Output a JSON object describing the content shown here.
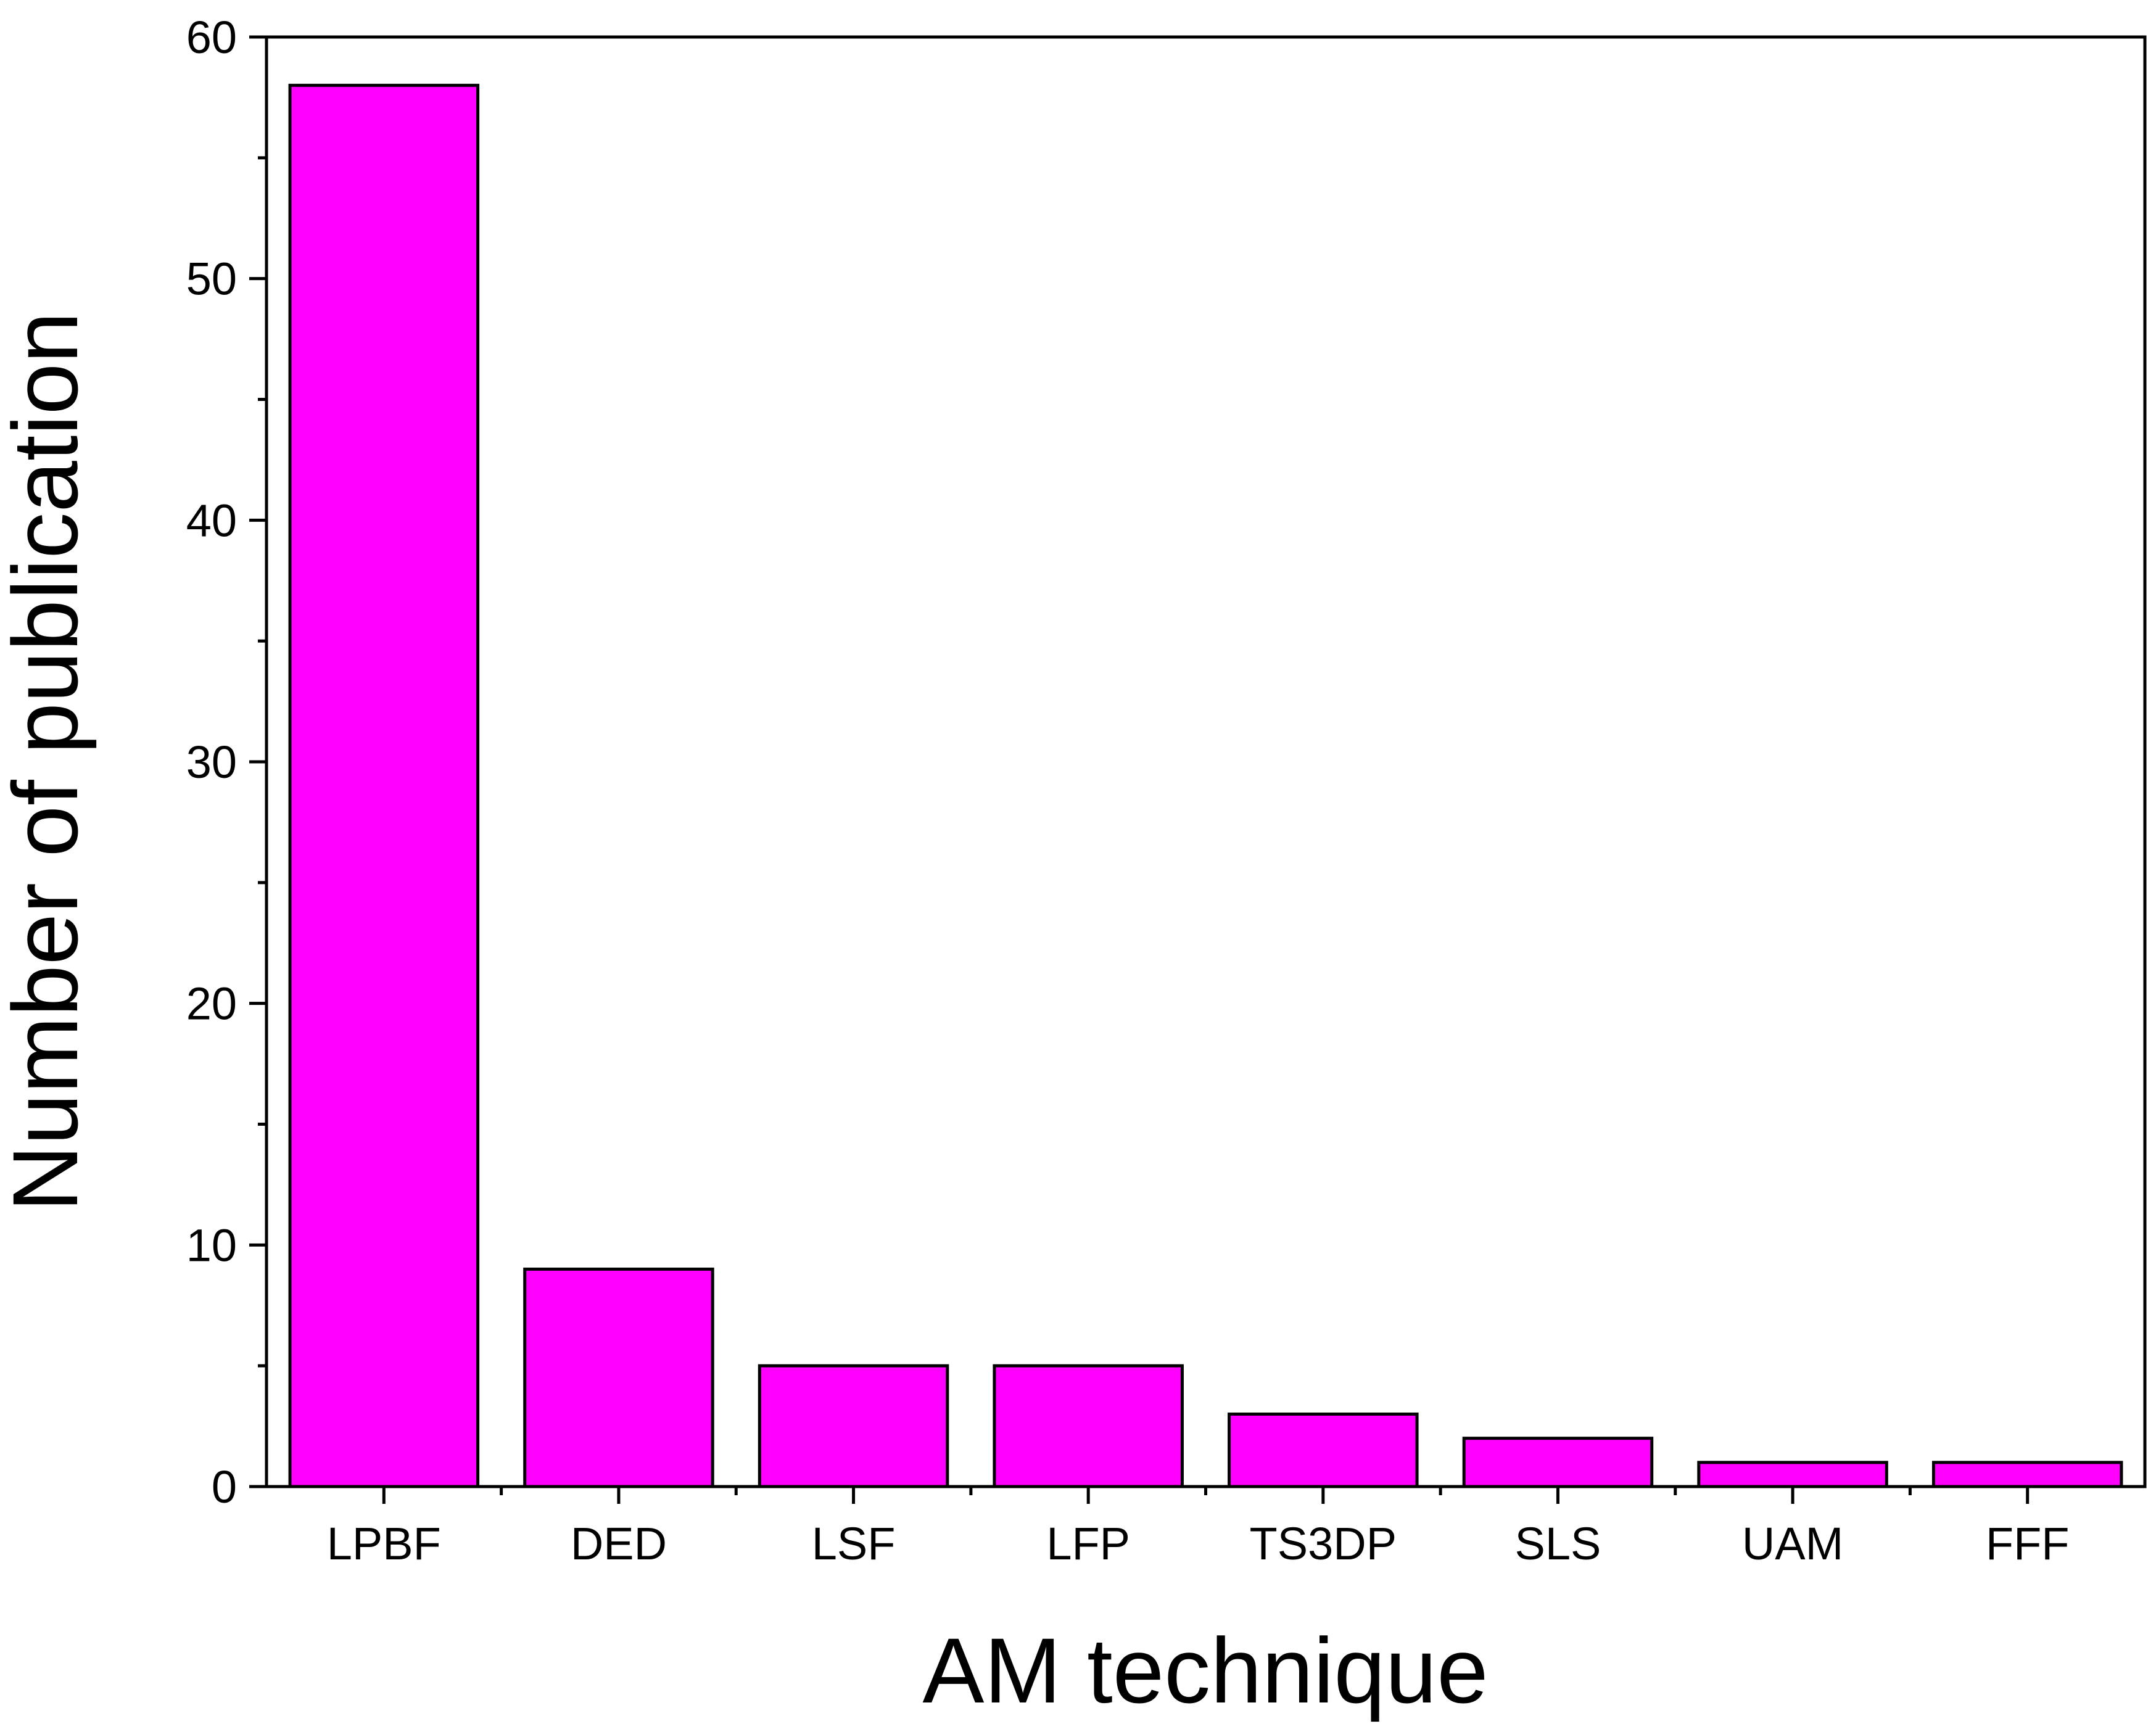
{
  "chart_data": {
    "type": "bar",
    "title": "",
    "xlabel": "AM technique",
    "ylabel": "Number of publication",
    "categories": [
      "LPBF",
      "DED",
      "LSF",
      "LFP",
      "TS3DP",
      "SLS",
      "UAM",
      "FFF"
    ],
    "values": [
      58,
      9,
      5,
      5,
      3,
      2,
      1,
      1
    ],
    "ylim": [
      0,
      60
    ],
    "yticks": [
      0,
      10,
      20,
      30,
      40,
      50,
      60
    ],
    "y_minor_step": 5,
    "grid": false,
    "legend": "none",
    "bar_color": "#FF00FF",
    "edge_color": "#000000"
  }
}
